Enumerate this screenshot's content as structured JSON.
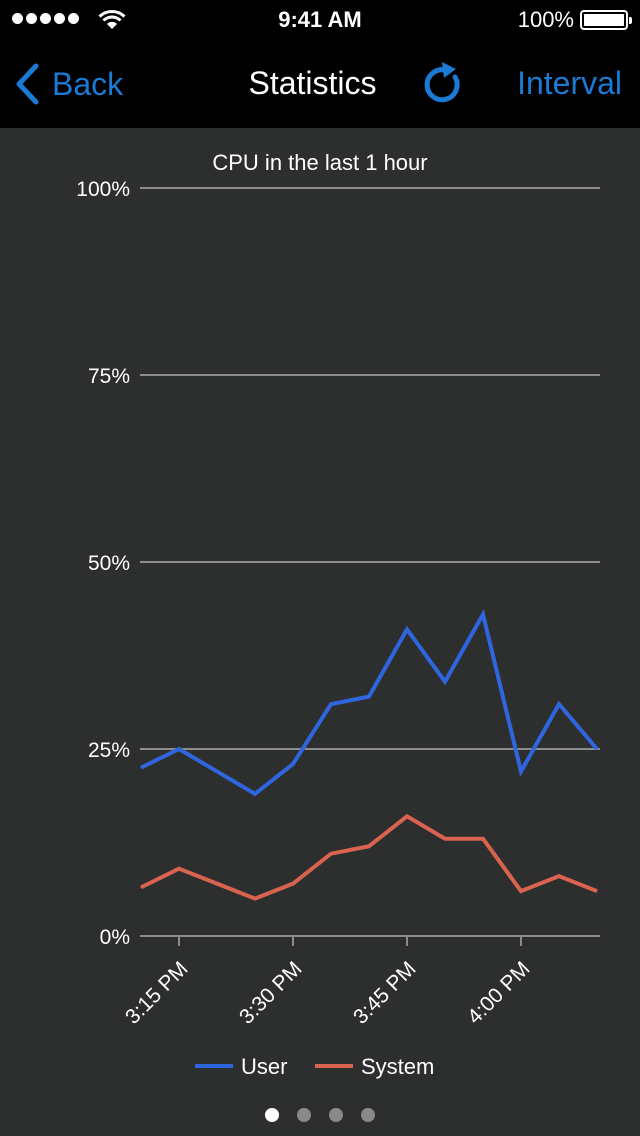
{
  "status_bar": {
    "time": "9:41 AM",
    "battery_percent": "100%",
    "signal_bars": 5
  },
  "nav": {
    "back_label": "Back",
    "title": "Statistics",
    "interval_label": "Interval",
    "accent_color": "#1a7ad4",
    "icons": {
      "back": "chevron-left-icon",
      "refresh": "refresh-icon"
    }
  },
  "chart_data": {
    "type": "line",
    "title": "CPU in the last 1 hour",
    "xlabel": "",
    "ylabel": "",
    "x_ticks": [
      "3:15 PM",
      "3:30 PM",
      "3:45 PM",
      "4:00 PM"
    ],
    "x": [
      "3:11 PM",
      "3:15 PM",
      "3:20 PM",
      "3:25 PM",
      "3:30 PM",
      "3:35 PM",
      "3:40 PM",
      "3:45 PM",
      "3:50 PM",
      "3:55 PM",
      "4:00 PM",
      "4:05 PM",
      "4:10 PM"
    ],
    "y_ticks": [
      "0%",
      "25%",
      "50%",
      "75%",
      "100%"
    ],
    "ylim": [
      0,
      100
    ],
    "grid": true,
    "legend_position": "bottom",
    "series": [
      {
        "name": "User",
        "color": "#2f66e0",
        "values": [
          22.5,
          25,
          22,
          19,
          23,
          31,
          32,
          41,
          34,
          43,
          22,
          31,
          25
        ]
      },
      {
        "name": "System",
        "color": "#d9634f",
        "values": [
          6.5,
          9,
          7,
          5,
          7,
          11,
          12,
          16,
          13,
          13,
          6,
          8,
          6
        ]
      }
    ]
  },
  "pager": {
    "pages": 4,
    "current": 1
  }
}
